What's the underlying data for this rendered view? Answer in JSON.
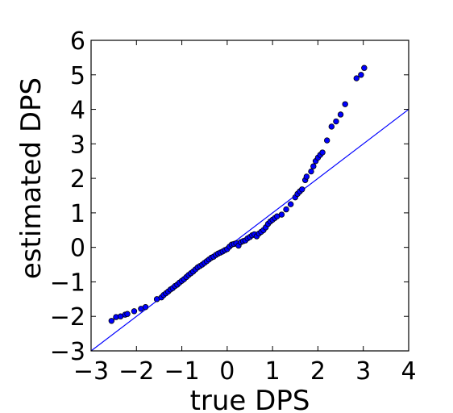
{
  "chart_data": {
    "type": "scatter",
    "title": "",
    "xlabel": "true DPS",
    "ylabel": "estimated DPS",
    "xlim": [
      -3,
      4
    ],
    "ylim": [
      -3,
      6
    ],
    "xticks": [
      -3,
      -2,
      -1,
      0,
      1,
      2,
      3,
      4
    ],
    "yticks": [
      -3,
      -2,
      -1,
      0,
      1,
      2,
      3,
      4,
      5,
      6
    ],
    "xtick_labels": [
      "−3",
      "−2",
      "−1",
      "0",
      "1",
      "2",
      "3",
      "4"
    ],
    "ytick_labels": [
      "−3",
      "−2",
      "−1",
      "0",
      "1",
      "2",
      "3",
      "4",
      "5",
      "6"
    ],
    "grid": false,
    "legend": "none",
    "marker_color": "#0000ff",
    "marker_edge_color": "#000000",
    "line_color": "#0000ff",
    "reference_line": {
      "slope": 1,
      "intercept": 0
    },
    "series": [
      {
        "points": [
          [
            -2.55,
            -2.13
          ],
          [
            -2.45,
            -2.02
          ],
          [
            -2.35,
            -2.0
          ],
          [
            -2.25,
            -1.95
          ],
          [
            -2.2,
            -1.93
          ],
          [
            -2.05,
            -1.85
          ],
          [
            -1.9,
            -1.78
          ],
          [
            -1.8,
            -1.73
          ],
          [
            -1.55,
            -1.5
          ],
          [
            -1.45,
            -1.45
          ],
          [
            -1.4,
            -1.38
          ],
          [
            -1.35,
            -1.33
          ],
          [
            -1.3,
            -1.28
          ],
          [
            -1.25,
            -1.22
          ],
          [
            -1.2,
            -1.18
          ],
          [
            -1.15,
            -1.12
          ],
          [
            -1.1,
            -1.08
          ],
          [
            -1.05,
            -1.02
          ],
          [
            -1.0,
            -0.97
          ],
          [
            -0.95,
            -0.92
          ],
          [
            -0.9,
            -0.86
          ],
          [
            -0.85,
            -0.8
          ],
          [
            -0.8,
            -0.75
          ],
          [
            -0.75,
            -0.7
          ],
          [
            -0.7,
            -0.64
          ],
          [
            -0.65,
            -0.58
          ],
          [
            -0.6,
            -0.54
          ],
          [
            -0.55,
            -0.5
          ],
          [
            -0.5,
            -0.45
          ],
          [
            -0.45,
            -0.4
          ],
          [
            -0.4,
            -0.35
          ],
          [
            -0.35,
            -0.3
          ],
          [
            -0.3,
            -0.27
          ],
          [
            -0.25,
            -0.22
          ],
          [
            -0.2,
            -0.18
          ],
          [
            -0.15,
            -0.15
          ],
          [
            -0.1,
            -0.12
          ],
          [
            -0.05,
            -0.08
          ],
          [
            0.0,
            -0.05
          ],
          [
            0.05,
            0.02
          ],
          [
            0.1,
            0.08
          ],
          [
            0.15,
            0.1
          ],
          [
            0.2,
            0.12
          ],
          [
            0.25,
            0.05
          ],
          [
            0.3,
            0.15
          ],
          [
            0.35,
            0.18
          ],
          [
            0.4,
            0.2
          ],
          [
            0.45,
            0.26
          ],
          [
            0.5,
            0.3
          ],
          [
            0.55,
            0.35
          ],
          [
            0.6,
            0.38
          ],
          [
            0.65,
            0.32
          ],
          [
            0.7,
            0.4
          ],
          [
            0.75,
            0.45
          ],
          [
            0.8,
            0.5
          ],
          [
            0.85,
            0.58
          ],
          [
            0.9,
            0.68
          ],
          [
            0.95,
            0.75
          ],
          [
            1.0,
            0.8
          ],
          [
            1.05,
            0.85
          ],
          [
            1.1,
            0.9
          ],
          [
            1.2,
            0.95
          ],
          [
            1.3,
            1.1
          ],
          [
            1.4,
            1.25
          ],
          [
            1.5,
            1.45
          ],
          [
            1.55,
            1.55
          ],
          [
            1.6,
            1.62
          ],
          [
            1.65,
            1.68
          ],
          [
            1.72,
            1.95
          ],
          [
            1.75,
            2.05
          ],
          [
            1.85,
            2.2
          ],
          [
            1.9,
            2.35
          ],
          [
            1.95,
            2.5
          ],
          [
            2.0,
            2.6
          ],
          [
            2.05,
            2.68
          ],
          [
            2.1,
            2.75
          ],
          [
            2.2,
            3.1
          ],
          [
            2.3,
            3.5
          ],
          [
            2.4,
            3.65
          ],
          [
            2.5,
            3.85
          ],
          [
            2.6,
            4.15
          ],
          [
            2.85,
            4.9
          ],
          [
            2.95,
            5.0
          ],
          [
            3.02,
            5.2
          ]
        ]
      }
    ]
  }
}
